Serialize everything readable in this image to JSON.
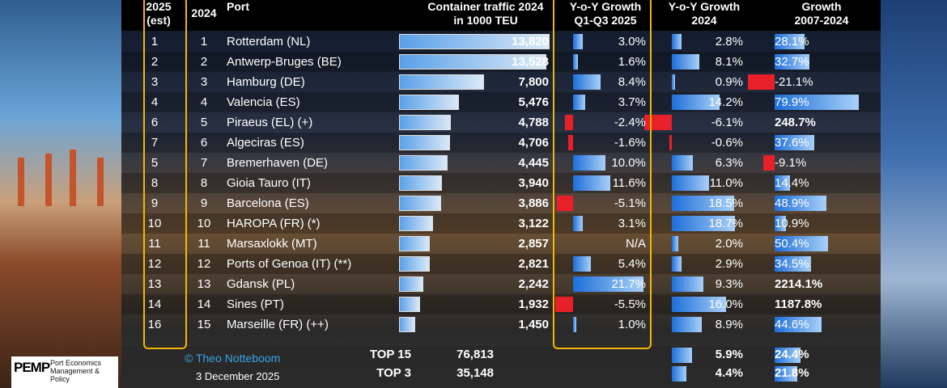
{
  "headers": {
    "rank2025": [
      "2025",
      "(est)"
    ],
    "rank2024": "2024",
    "port": "Port",
    "teu": [
      "Container traffic 2024",
      "in 1000 TEU"
    ],
    "q1q3": [
      "Y-o-Y Growth",
      "Q1-Q3 2025"
    ],
    "g2024": [
      "Y-o-Y Growth",
      "2024"
    ],
    "g0724": [
      "Growth",
      "2007-2024"
    ]
  },
  "colors": {
    "frame": "#f2b705",
    "positive_bar": "#1e6fd9",
    "negative_bar": "#e8202a",
    "credit": "#3aa6e8"
  },
  "chart_data": {
    "type": "table",
    "columns": [
      "2025 (est)",
      "2024",
      "Port",
      "Container traffic 2024 in 1000 TEU",
      "Y-o-Y Growth Q1-Q3 2025",
      "Y-o-Y Growth 2024",
      "Growth 2007-2024"
    ],
    "rows": [
      {
        "r25": "1",
        "r24": "1",
        "port": "Rotterdam (NL)",
        "teu": 13820,
        "teu_label": "13,820",
        "q": 3.0,
        "q_label": "3.0%",
        "g24": 2.8,
        "g24_label": "2.8%",
        "g07": 28.1,
        "g07_label": "28.1%"
      },
      {
        "r25": "2",
        "r24": "2",
        "port": "Antwerp-Bruges (BE)",
        "teu": 13528,
        "teu_label": "13,528",
        "q": 1.6,
        "q_label": "1.6%",
        "g24": 8.1,
        "g24_label": "8.1%",
        "g07": 32.7,
        "g07_label": "32.7%"
      },
      {
        "r25": "3",
        "r24": "3",
        "port": "Hamburg (DE)",
        "teu": 7800,
        "teu_label": "7,800",
        "q": 8.4,
        "q_label": "8.4%",
        "g24": 0.9,
        "g24_label": "0.9%",
        "g07": -21.1,
        "g07_label": "-21.1%"
      },
      {
        "r25": "4",
        "r24": "4",
        "port": "Valencia (ES)",
        "teu": 5476,
        "teu_label": "5,476",
        "q": 3.7,
        "q_label": "3.7%",
        "g24": 14.2,
        "g24_label": "14.2%",
        "g07": 79.9,
        "g07_label": "79.9%"
      },
      {
        "r25": "6",
        "r24": "5",
        "port": "Piraeus (EL) (+)",
        "teu": 4788,
        "teu_label": "4,788",
        "q": -2.4,
        "q_label": "-2.4%",
        "g24": -6.1,
        "g24_label": "-6.1%",
        "g07": 248.7,
        "g07_label": "248.7%"
      },
      {
        "r25": "7",
        "r24": "6",
        "port": "Algeciras (ES)",
        "teu": 4706,
        "teu_label": "4,706",
        "q": -1.6,
        "q_label": "-1.6%",
        "g24": -0.6,
        "g24_label": "-0.6%",
        "g07": 37.6,
        "g07_label": "37.6%"
      },
      {
        "r25": "5",
        "r24": "7",
        "port": "Bremerhaven (DE)",
        "teu": 4445,
        "teu_label": "4,445",
        "q": 10.0,
        "q_label": "10.0%",
        "g24": 6.3,
        "g24_label": "6.3%",
        "g07": -9.1,
        "g07_label": "-9.1%"
      },
      {
        "r25": "8",
        "r24": "8",
        "port": "Gioia Tauro (IT)",
        "teu": 3940,
        "teu_label": "3,940",
        "q": 11.6,
        "q_label": "11.6%",
        "g24": 11.0,
        "g24_label": "11.0%",
        "g07": 14.4,
        "g07_label": "14.4%"
      },
      {
        "r25": "9",
        "r24": "9",
        "port": "Barcelona (ES)",
        "teu": 3886,
        "teu_label": "3,886",
        "q": -5.1,
        "q_label": "-5.1%",
        "g24": 18.5,
        "g24_label": "18.5%",
        "g07": 48.9,
        "g07_label": "48.9%"
      },
      {
        "r25": "10",
        "r24": "10",
        "port": "HAROPA (FR) (*)",
        "teu": 3122,
        "teu_label": "3,122",
        "q": 3.1,
        "q_label": "3.1%",
        "g24": 18.7,
        "g24_label": "18.7%",
        "g07": 10.9,
        "g07_label": "10.9%"
      },
      {
        "r25": "11",
        "r24": "11",
        "port": "Marsaxlokk (MT)",
        "teu": 2857,
        "teu_label": "2,857",
        "q": null,
        "q_label": "N/A",
        "g24": 2.0,
        "g24_label": "2.0%",
        "g07": 50.4,
        "g07_label": "50.4%"
      },
      {
        "r25": "12",
        "r24": "12",
        "port": "Ports of Genoa (IT) (**)",
        "teu": 2821,
        "teu_label": "2,821",
        "q": 5.4,
        "q_label": "5.4%",
        "g24": 2.9,
        "g24_label": "2.9%",
        "g07": 34.5,
        "g07_label": "34.5%"
      },
      {
        "r25": "13",
        "r24": "13",
        "port": "Gdansk (PL)",
        "teu": 2242,
        "teu_label": "2,242",
        "q": 21.7,
        "q_label": "21.7%",
        "g24": 9.3,
        "g24_label": "9.3%",
        "g07": 2214.1,
        "g07_label": "2214.1%"
      },
      {
        "r25": "14",
        "r24": "14",
        "port": "Sines (PT)",
        "teu": 1932,
        "teu_label": "1,932",
        "q": -5.5,
        "q_label": "-5.5%",
        "g24": 16.0,
        "g24_label": "16.0%",
        "g07": 1187.8,
        "g07_label": "1187.8%"
      },
      {
        "r25": "16",
        "r24": "15",
        "port": "Marseille (FR) (++)",
        "teu": 1450,
        "teu_label": "1,450",
        "q": 1.0,
        "q_label": "1.0%",
        "g24": 8.9,
        "g24_label": "8.9%",
        "g07": 44.6,
        "g07_label": "44.6%"
      }
    ],
    "totals": [
      {
        "label": "TOP 15",
        "teu": "76,813",
        "g24": 5.9,
        "g24_label": "5.9%",
        "g07": 24.4,
        "g07_label": "24.4%"
      },
      {
        "label": "TOP 3",
        "teu": "35,148",
        "g24": 4.4,
        "g24_label": "4.4%",
        "g07": 21.8,
        "g07_label": "21.8%"
      }
    ]
  },
  "footer": {
    "credit": "© Theo Notteboom",
    "date": "3 December 2025"
  },
  "logo": {
    "name": "PEMP",
    "subtitle": [
      "Port Economics",
      "Management & Policy"
    ]
  }
}
